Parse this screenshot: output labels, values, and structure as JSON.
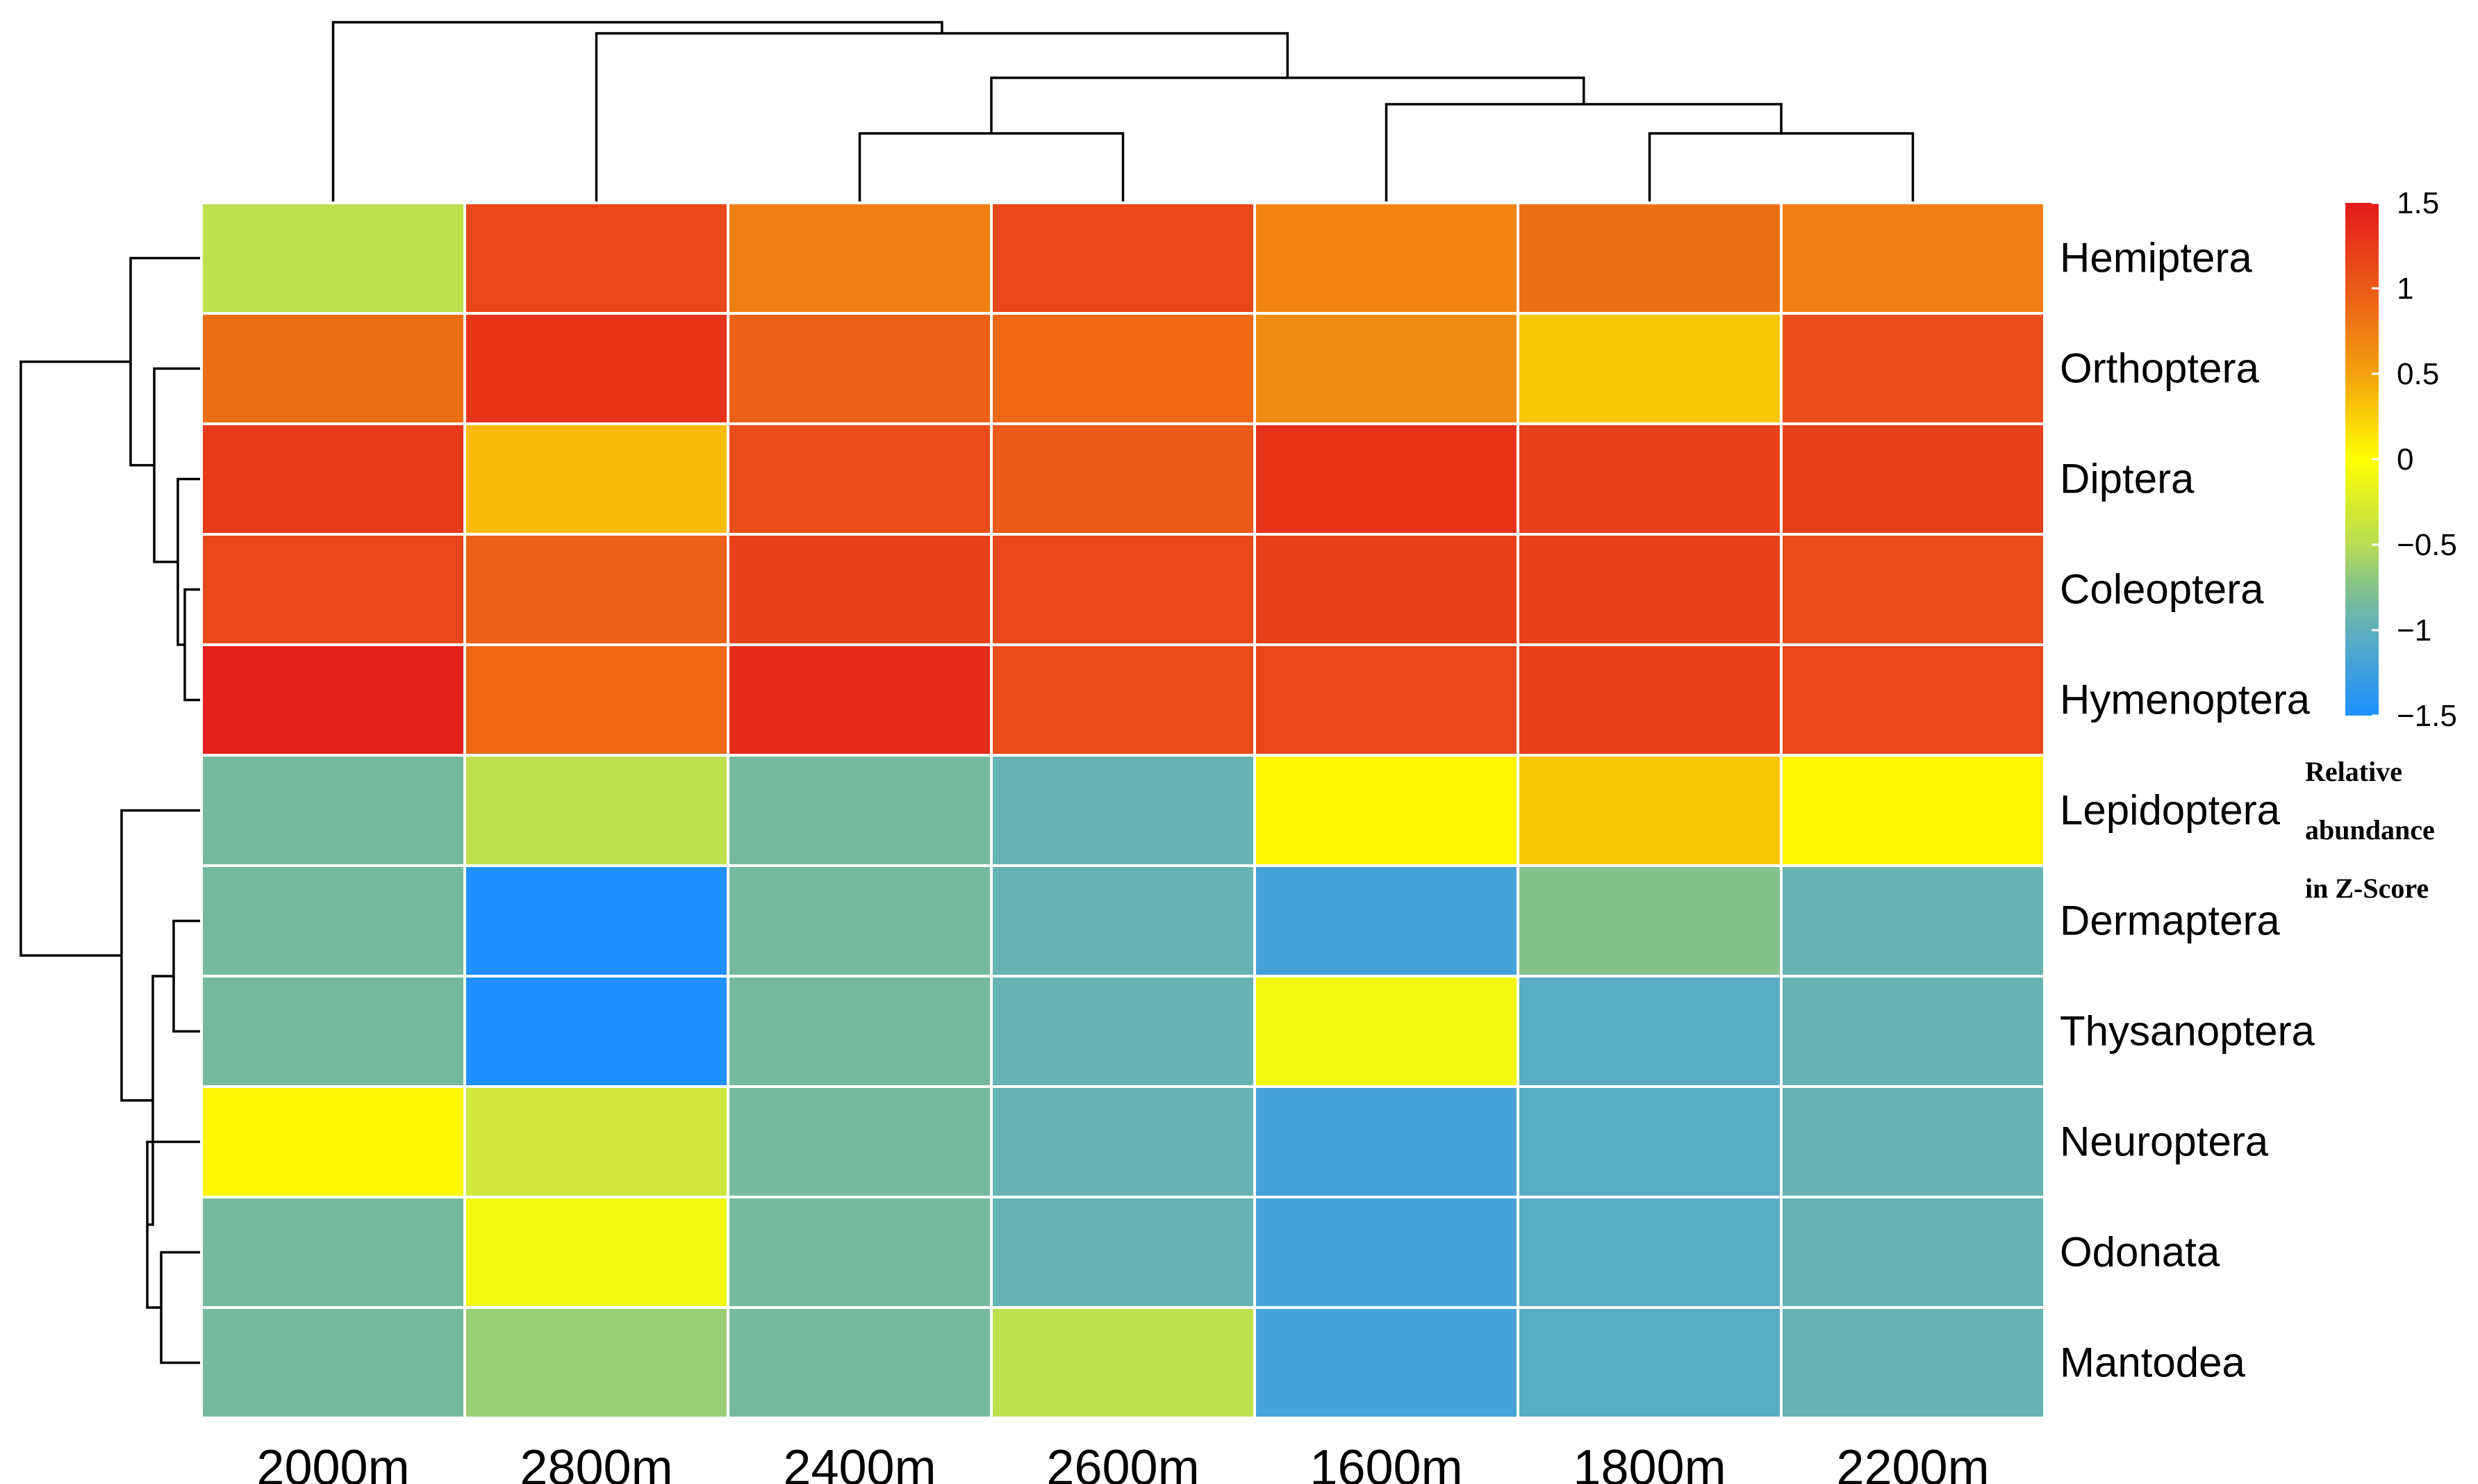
{
  "chart_data": {
    "type": "heatmap",
    "title": "",
    "columns": [
      "2000m",
      "2800m",
      "2400m",
      "2600m",
      "1600m",
      "1800m",
      "2200m"
    ],
    "rows": [
      "Hemiptera",
      "Orthoptera",
      "Diptera",
      "Coleoptera",
      "Hymenoptera",
      "Lepidoptera",
      "Dermaptera",
      "Thysanoptera",
      "Neuroptera",
      "Odonata",
      "Mantodea"
    ],
    "values": [
      [
        -0.45,
        1.15,
        0.75,
        1.15,
        0.7,
        0.85,
        0.75
      ],
      [
        0.85,
        1.3,
        0.95,
        0.9,
        0.65,
        0.3,
        1.1
      ],
      [
        1.25,
        0.35,
        1.1,
        1.0,
        1.3,
        1.2,
        1.2
      ],
      [
        1.15,
        0.95,
        1.2,
        1.15,
        1.2,
        1.2,
        1.1
      ],
      [
        1.45,
        0.9,
        1.35,
        1.1,
        1.15,
        1.2,
        1.15
      ],
      [
        -0.85,
        -0.45,
        -0.85,
        -0.95,
        0.05,
        0.3,
        0.05
      ],
      [
        -0.85,
        -1.5,
        -0.85,
        -0.95,
        -1.2,
        -0.75,
        -0.95
      ],
      [
        -0.85,
        -1.5,
        -0.85,
        -0.95,
        -0.1,
        -1.05,
        -0.95
      ],
      [
        0.05,
        -0.35,
        -0.85,
        -0.95,
        -1.2,
        -1.05,
        -0.95
      ],
      [
        -0.85,
        -0.1,
        -0.85,
        -0.95,
        -1.2,
        -1.05,
        -0.95
      ],
      [
        -0.85,
        -0.65,
        -0.85,
        -0.45,
        -1.2,
        -1.05,
        -0.95
      ]
    ],
    "color_scale": {
      "min": -1.5,
      "max": 1.5,
      "stops": [
        {
          "value": -1.5,
          "color": "#1E90FF"
        },
        {
          "value": -1.0,
          "color": "#5FAFBC"
        },
        {
          "value": -0.75,
          "color": "#84C28C"
        },
        {
          "value": -0.5,
          "color": "#B7DC54"
        },
        {
          "value": 0.0,
          "color": "#FFFF00"
        },
        {
          "value": 0.5,
          "color": "#F4A10F"
        },
        {
          "value": 1.0,
          "color": "#EA5A18"
        },
        {
          "value": 1.5,
          "color": "#E31A1C"
        }
      ]
    },
    "legend": {
      "ticks": [
        "1.5",
        "1",
        "0.5",
        "0",
        "−0.5",
        "−1",
        "−1.5"
      ],
      "tick_values": [
        1.5,
        1,
        0.5,
        0,
        -0.5,
        -1,
        -1.5
      ],
      "title_lines": [
        "Relative",
        "abundance",
        "in Z-Score"
      ],
      "placement": "right"
    }
  }
}
